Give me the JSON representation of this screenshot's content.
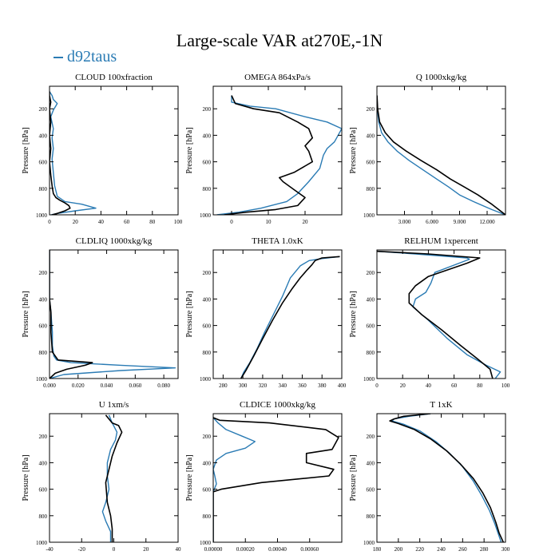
{
  "header": {
    "title": "Large-scale VAR at270E,-1N",
    "legend_label": "d92taus"
  },
  "colors": {
    "series1": "#2a7bb4",
    "series2": "#000000"
  },
  "chart_data": [
    {
      "type": "line",
      "title": "CLOUD 100xfraction",
      "ylabel": "Pressure [hPa]",
      "xlim": [
        0,
        100
      ],
      "ylim": [
        1000,
        30
      ],
      "y_reversed": true,
      "xticks": [
        0,
        20,
        40,
        60,
        80,
        100
      ],
      "xticklabels": [
        "0",
        "20",
        "40",
        "60",
        "80",
        "100"
      ],
      "yticks": [
        200,
        400,
        600,
        800,
        1000
      ],
      "yticklabels": [
        "200",
        "400",
        "600",
        "800",
        "1000"
      ],
      "series": [
        {
          "name": "d92taus",
          "color": "#2a7bb4",
          "x": [
            0,
            2,
            3,
            6,
            3,
            1,
            3,
            2,
            3,
            2,
            3,
            4,
            6,
            12,
            25,
            36,
            20,
            6,
            1
          ],
          "y": [
            70,
            100,
            130,
            160,
            210,
            260,
            350,
            420,
            500,
            580,
            680,
            780,
            860,
            900,
            920,
            950,
            970,
            990,
            1000
          ]
        },
        {
          "color": "#000000",
          "x": [
            0,
            0,
            1,
            0,
            1,
            0,
            1,
            0,
            1,
            2,
            3,
            5,
            8,
            12,
            15,
            16,
            12,
            6,
            2
          ],
          "y": [
            70,
            100,
            150,
            200,
            300,
            400,
            500,
            600,
            700,
            780,
            840,
            870,
            890,
            910,
            930,
            950,
            970,
            990,
            1000
          ]
        }
      ]
    },
    {
      "type": "line",
      "title": "OMEGA 864xPa/s",
      "ylabel": "Pressure [hPa]",
      "xlim": [
        -5,
        30
      ],
      "ylim": [
        1000,
        30
      ],
      "y_reversed": true,
      "xticks": [
        0,
        10,
        20
      ],
      "xticklabels": [
        "0",
        "10",
        "20"
      ],
      "yticks": [
        200,
        400,
        600,
        800,
        1000
      ],
      "yticklabels": [
        "200",
        "400",
        "600",
        "800",
        "1000"
      ],
      "series": [
        {
          "name": "d92taus",
          "color": "#2a7bb4",
          "x": [
            0,
            0,
            5,
            12,
            20,
            26,
            30,
            28,
            26,
            25,
            24,
            21,
            18,
            15,
            8,
            2,
            -4
          ],
          "y": [
            100,
            150,
            180,
            200,
            260,
            300,
            350,
            450,
            500,
            550,
            650,
            750,
            840,
            900,
            950,
            980,
            1000
          ]
        },
        {
          "color": "#000000",
          "x": [
            0,
            1,
            6,
            13,
            18,
            21,
            22,
            20,
            21,
            22,
            17,
            13,
            14,
            17,
            20,
            18,
            12,
            4,
            -2
          ],
          "y": [
            100,
            160,
            200,
            230,
            300,
            350,
            420,
            480,
            520,
            600,
            680,
            720,
            750,
            810,
            870,
            930,
            960,
            980,
            1000
          ]
        }
      ]
    },
    {
      "type": "line",
      "title": "Q 1000xkg/kg",
      "ylabel": "Pressure [hPa]",
      "xlim": [
        0,
        14
      ],
      "ylim": [
        1000,
        30
      ],
      "y_reversed": true,
      "xticks": [
        3,
        6,
        9,
        12
      ],
      "xticklabels": [
        "3.000",
        "6.000",
        "9.000",
        "12.000"
      ],
      "yticks": [
        200,
        400,
        600,
        800,
        1000
      ],
      "yticklabels": [
        "200",
        "400",
        "600",
        "800",
        "1000"
      ],
      "series": [
        {
          "name": "d92taus",
          "color": "#2a7bb4",
          "x": [
            0.01,
            0.05,
            0.2,
            0.5,
            1.2,
            2.2,
            3.5,
            5.0,
            6.5,
            7.8,
            9.0,
            10.5,
            12.5,
            14
          ],
          "y": [
            100,
            200,
            300,
            380,
            450,
            520,
            590,
            660,
            730,
            790,
            850,
            900,
            960,
            1000
          ]
        },
        {
          "color": "#000000",
          "x": [
            0.01,
            0.08,
            0.3,
            0.9,
            1.8,
            3.2,
            4.8,
            6.5,
            8.0,
            9.5,
            11.0,
            12.5,
            14
          ],
          "y": [
            100,
            200,
            300,
            380,
            450,
            520,
            590,
            660,
            730,
            790,
            850,
            920,
            1000
          ]
        }
      ]
    },
    {
      "type": "line",
      "title": "CLDLIQ 1000xkg/kg",
      "ylabel": "Pressure [hPa]",
      "xlim": [
        0,
        0.09
      ],
      "ylim": [
        1000,
        30
      ],
      "y_reversed": true,
      "xticks": [
        0,
        0.02,
        0.04,
        0.06,
        0.08
      ],
      "xticklabels": [
        "0.000",
        "0.020",
        "0.040",
        "0.060",
        "0.080"
      ],
      "yticks": [
        200,
        400,
        600,
        800,
        1000
      ],
      "yticklabels": [
        "200",
        "400",
        "600",
        "800",
        "1000"
      ],
      "series": [
        {
          "name": "d92taus",
          "color": "#2a7bb4",
          "x": [
            0,
            0,
            0.001,
            0.002,
            0.002,
            0.003,
            0.005,
            0.015,
            0.05,
            0.088,
            0.05,
            0.01,
            0
          ],
          "y": [
            30,
            400,
            500,
            650,
            750,
            830,
            860,
            880,
            900,
            920,
            940,
            970,
            1000
          ]
        },
        {
          "color": "#000000",
          "x": [
            0,
            0,
            0.001,
            0.001,
            0.002,
            0.006,
            0.03,
            0.025,
            0.012,
            0.004,
            0
          ],
          "y": [
            30,
            400,
            500,
            650,
            800,
            860,
            880,
            900,
            930,
            960,
            1000
          ]
        }
      ]
    },
    {
      "type": "line",
      "title": "THETA 1.0xK",
      "ylabel": "Pressure [hPa]",
      "xlim": [
        270,
        400
      ],
      "ylim": [
        1000,
        30
      ],
      "y_reversed": true,
      "xticks": [
        280,
        300,
        320,
        340,
        360,
        380,
        400
      ],
      "xticklabels": [
        "280",
        "300",
        "320",
        "340",
        "360",
        "380",
        "400"
      ],
      "yticks": [
        200,
        400,
        600,
        800,
        1000
      ],
      "yticklabels": [
        "200",
        "400",
        "600",
        "800",
        "1000"
      ],
      "series": [
        {
          "name": "d92taus",
          "color": "#2a7bb4",
          "x": [
            398,
            380,
            367,
            358,
            348,
            340,
            332,
            322,
            314,
            307,
            301,
            298
          ],
          "y": [
            80,
            95,
            110,
            150,
            240,
            380,
            500,
            650,
            780,
            880,
            950,
            1000
          ]
        },
        {
          "color": "#000000",
          "x": [
            398,
            380,
            373,
            370,
            365,
            358,
            350,
            340,
            330,
            320,
            311,
            303,
            298
          ],
          "y": [
            80,
            90,
            110,
            140,
            180,
            240,
            320,
            430,
            560,
            700,
            830,
            940,
            1000
          ]
        }
      ]
    },
    {
      "type": "line",
      "title": "RELHUM 1xpercent",
      "ylabel": "Pressure [hPa]",
      "xlim": [
        0,
        100
      ],
      "ylim": [
        1000,
        30
      ],
      "y_reversed": true,
      "xticks": [
        0,
        20,
        40,
        60,
        80,
        100
      ],
      "xticklabels": [
        "0",
        "20",
        "40",
        "60",
        "80",
        "100"
      ],
      "yticks": [
        200,
        400,
        600,
        800,
        1000
      ],
      "yticklabels": [
        "200",
        "400",
        "600",
        "800",
        "1000"
      ],
      "series": [
        {
          "name": "d92taus",
          "color": "#2a7bb4",
          "x": [
            0,
            30,
            70,
            72,
            45,
            42,
            38,
            30,
            28,
            40,
            55,
            70,
            85,
            96,
            92
          ],
          "y": [
            40,
            60,
            90,
            100,
            200,
            280,
            350,
            400,
            460,
            560,
            700,
            820,
            900,
            950,
            1000
          ]
        },
        {
          "color": "#000000",
          "x": [
            0,
            40,
            80,
            70,
            40,
            30,
            25,
            25,
            35,
            50,
            65,
            78,
            88,
            90
          ],
          "y": [
            40,
            60,
            90,
            130,
            230,
            300,
            360,
            430,
            520,
            630,
            750,
            850,
            930,
            1000
          ]
        }
      ]
    },
    {
      "type": "line",
      "title": "U 1xm/s",
      "ylabel": "Pressure [hPa]",
      "xlim": [
        -40,
        40
      ],
      "ylim": [
        1000,
        30
      ],
      "y_reversed": true,
      "xticks": [
        -40,
        -20,
        0,
        20,
        40
      ],
      "xticklabels": [
        "-40",
        "-20",
        "0",
        "20",
        "40"
      ],
      "yticks": [
        200,
        400,
        600,
        800,
        1000
      ],
      "yticklabels": [
        "200",
        "400",
        "600",
        "800",
        "1000"
      ],
      "series": [
        {
          "name": "d92taus",
          "color": "#2a7bb4",
          "x": [
            -3,
            -1,
            2,
            1,
            -2,
            -4,
            -4,
            -3,
            -5,
            -7,
            -5,
            -2,
            -2
          ],
          "y": [
            40,
            100,
            170,
            230,
            300,
            400,
            500,
            600,
            700,
            770,
            840,
            920,
            1000
          ]
        },
        {
          "color": "#000000",
          "x": [
            -5,
            -1,
            3,
            5,
            2,
            -1,
            -3,
            -5,
            -4,
            -2,
            -1,
            -1
          ],
          "y": [
            40,
            100,
            120,
            170,
            250,
            350,
            450,
            550,
            700,
            800,
            900,
            1000
          ]
        }
      ]
    },
    {
      "type": "line",
      "title": "CLDICE 1000xkg/kg",
      "ylabel": "Pressure [hPa]",
      "xlim": [
        0,
        0.0008
      ],
      "ylim": [
        1000,
        30
      ],
      "y_reversed": true,
      "xticks": [
        0,
        0.0002,
        0.0004,
        0.0006
      ],
      "xticklabels": [
        "0.00000",
        "0.00020",
        "0.00040",
        "0.00060"
      ],
      "yticks": [
        200,
        400,
        600,
        800,
        1000
      ],
      "yticklabels": [
        "200",
        "400",
        "600",
        "800",
        "1000"
      ],
      "series": [
        {
          "name": "d92taus",
          "color": "#2a7bb4",
          "x": [
            0,
            3e-05,
            8e-05,
            0.00018,
            0.00026,
            0.0002,
            8e-05,
            2e-05,
            0,
            1e-05,
            2e-05,
            0,
            0
          ],
          "y": [
            60,
            100,
            150,
            200,
            240,
            290,
            330,
            380,
            450,
            500,
            560,
            620,
            1000
          ]
        },
        {
          "color": "#000000",
          "x": [
            0,
            4e-05,
            0.00035,
            0.0007,
            0.00078,
            0.00074,
            0.00058,
            0.00058,
            0.00075,
            0.00072,
            0.0003,
            5e-05,
            0,
            0
          ],
          "y": [
            60,
            80,
            100,
            150,
            210,
            300,
            330,
            400,
            450,
            500,
            550,
            600,
            620,
            1000
          ]
        }
      ]
    },
    {
      "type": "line",
      "title": "T 1xK",
      "ylabel": "Pressure [hPa]",
      "xlim": [
        180,
        300
      ],
      "ylim": [
        1000,
        30
      ],
      "y_reversed": true,
      "xticks": [
        180,
        200,
        220,
        240,
        260,
        280,
        300
      ],
      "xticklabels": [
        "180",
        "200",
        "220",
        "240",
        "260",
        "280",
        "300"
      ],
      "yticks": [
        200,
        400,
        600,
        800,
        1000
      ],
      "yticklabels": [
        "200",
        "400",
        "600",
        "800",
        "1000"
      ],
      "series": [
        {
          "name": "d92taus",
          "color": "#2a7bb4",
          "x": [
            230,
            210,
            196,
            194,
            205,
            220,
            235,
            248,
            260,
            270,
            278,
            285,
            290,
            293,
            296
          ],
          "y": [
            30,
            50,
            70,
            85,
            110,
            160,
            240,
            330,
            430,
            540,
            650,
            760,
            860,
            930,
            1000
          ]
        },
        {
          "color": "#000000",
          "x": [
            230,
            205,
            196,
            192,
            200,
            215,
            230,
            245,
            258,
            270,
            279,
            286,
            291,
            294,
            298
          ],
          "y": [
            30,
            50,
            70,
            85,
            105,
            150,
            220,
            310,
            410,
            520,
            630,
            740,
            850,
            930,
            1000
          ]
        }
      ]
    }
  ]
}
